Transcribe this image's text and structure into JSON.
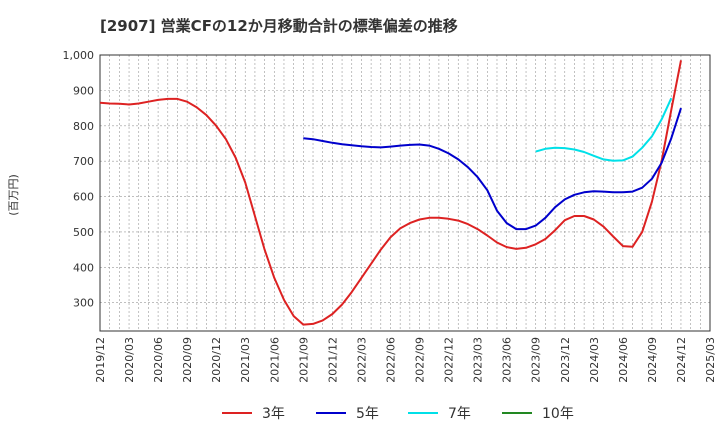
{
  "chart_data": {
    "type": "line",
    "title": "[2907]  営業CFの12か月移動合計の標準偏差の推移",
    "ylabel": "(百万円)",
    "xlabel": "",
    "ylim": [
      220,
      1000
    ],
    "xlim": [
      "2019/12",
      "2025/03"
    ],
    "y_ticks": [
      300,
      400,
      500,
      600,
      700,
      800,
      900,
      1000
    ],
    "y_tick_labels": [
      "300",
      "400",
      "500",
      "600",
      "700",
      "800",
      "900",
      "1,000"
    ],
    "x_tick_labels": [
      "2019/12",
      "2020/03",
      "2020/06",
      "2020/09",
      "2020/12",
      "2021/03",
      "2021/06",
      "2021/09",
      "2021/12",
      "2022/03",
      "2022/06",
      "2022/09",
      "2022/12",
      "2023/03",
      "2023/06",
      "2023/09",
      "2023/12",
      "2024/03",
      "2024/06",
      "2024/09",
      "2024/12",
      "2025/03"
    ],
    "grid": true,
    "legend_position": "bottom",
    "series": [
      {
        "name": "3年",
        "color": "#dd2222",
        "points": [
          [
            "2019/12",
            865
          ],
          [
            "2020/01",
            863
          ],
          [
            "2020/02",
            862
          ],
          [
            "2020/03",
            860
          ],
          [
            "2020/04",
            863
          ],
          [
            "2020/05",
            868
          ],
          [
            "2020/06",
            873
          ],
          [
            "2020/07",
            876
          ],
          [
            "2020/08",
            876
          ],
          [
            "2020/09",
            868
          ],
          [
            "2020/10",
            852
          ],
          [
            "2020/11",
            830
          ],
          [
            "2020/12",
            800
          ],
          [
            "2021/01",
            762
          ],
          [
            "2021/02",
            710
          ],
          [
            "2021/03",
            640
          ],
          [
            "2021/04",
            545
          ],
          [
            "2021/05",
            450
          ],
          [
            "2021/06",
            370
          ],
          [
            "2021/07",
            308
          ],
          [
            "2021/08",
            262
          ],
          [
            "2021/09",
            238
          ],
          [
            "2021/10",
            240
          ],
          [
            "2021/11",
            250
          ],
          [
            "2021/12",
            268
          ],
          [
            "2022/01",
            295
          ],
          [
            "2022/02",
            330
          ],
          [
            "2022/03",
            370
          ],
          [
            "2022/04",
            410
          ],
          [
            "2022/05",
            450
          ],
          [
            "2022/06",
            485
          ],
          [
            "2022/07",
            510
          ],
          [
            "2022/08",
            525
          ],
          [
            "2022/09",
            535
          ],
          [
            "2022/10",
            540
          ],
          [
            "2022/11",
            540
          ],
          [
            "2022/12",
            537
          ],
          [
            "2023/01",
            532
          ],
          [
            "2023/02",
            522
          ],
          [
            "2023/03",
            508
          ],
          [
            "2023/04",
            490
          ],
          [
            "2023/05",
            470
          ],
          [
            "2023/06",
            457
          ],
          [
            "2023/07",
            452
          ],
          [
            "2023/08",
            455
          ],
          [
            "2023/09",
            465
          ],
          [
            "2023/10",
            480
          ],
          [
            "2023/11",
            505
          ],
          [
            "2023/12",
            533
          ],
          [
            "2024/01",
            545
          ],
          [
            "2024/02",
            545
          ],
          [
            "2024/03",
            535
          ],
          [
            "2024/04",
            515
          ],
          [
            "2024/05",
            487
          ],
          [
            "2024/06",
            460
          ],
          [
            "2024/07",
            458
          ],
          [
            "2024/08",
            500
          ],
          [
            "2024/09",
            585
          ],
          [
            "2024/10",
            700
          ],
          [
            "2024/11",
            845
          ],
          [
            "2024/12",
            985
          ]
        ]
      },
      {
        "name": "5年",
        "color": "#0000cc",
        "points": [
          [
            "2021/09",
            765
          ],
          [
            "2021/10",
            762
          ],
          [
            "2021/11",
            757
          ],
          [
            "2021/12",
            752
          ],
          [
            "2022/01",
            748
          ],
          [
            "2022/02",
            745
          ],
          [
            "2022/03",
            742
          ],
          [
            "2022/04",
            740
          ],
          [
            "2022/05",
            739
          ],
          [
            "2022/06",
            741
          ],
          [
            "2022/07",
            744
          ],
          [
            "2022/08",
            746
          ],
          [
            "2022/09",
            747
          ],
          [
            "2022/10",
            744
          ],
          [
            "2022/11",
            735
          ],
          [
            "2022/12",
            722
          ],
          [
            "2023/01",
            705
          ],
          [
            "2023/02",
            683
          ],
          [
            "2023/03",
            655
          ],
          [
            "2023/04",
            618
          ],
          [
            "2023/05",
            560
          ],
          [
            "2023/06",
            525
          ],
          [
            "2023/07",
            508
          ],
          [
            "2023/08",
            508
          ],
          [
            "2023/09",
            518
          ],
          [
            "2023/10",
            540
          ],
          [
            "2023/11",
            570
          ],
          [
            "2023/12",
            592
          ],
          [
            "2024/01",
            605
          ],
          [
            "2024/02",
            612
          ],
          [
            "2024/03",
            615
          ],
          [
            "2024/04",
            614
          ],
          [
            "2024/05",
            612
          ],
          [
            "2024/06",
            612
          ],
          [
            "2024/07",
            614
          ],
          [
            "2024/08",
            625
          ],
          [
            "2024/09",
            650
          ],
          [
            "2024/10",
            695
          ],
          [
            "2024/11",
            765
          ],
          [
            "2024/12",
            850
          ]
        ]
      },
      {
        "name": "7年",
        "color": "#00e0e8",
        "points": [
          [
            "2023/09",
            727
          ],
          [
            "2023/10",
            735
          ],
          [
            "2023/11",
            738
          ],
          [
            "2023/12",
            737
          ],
          [
            "2024/01",
            733
          ],
          [
            "2024/02",
            726
          ],
          [
            "2024/03",
            715
          ],
          [
            "2024/04",
            705
          ],
          [
            "2024/05",
            701
          ],
          [
            "2024/06",
            702
          ],
          [
            "2024/07",
            713
          ],
          [
            "2024/08",
            738
          ],
          [
            "2024/09",
            770
          ],
          [
            "2024/10",
            818
          ],
          [
            "2024/11",
            878
          ]
        ]
      },
      {
        "name": "10年",
        "color": "#228822",
        "points": []
      }
    ]
  }
}
